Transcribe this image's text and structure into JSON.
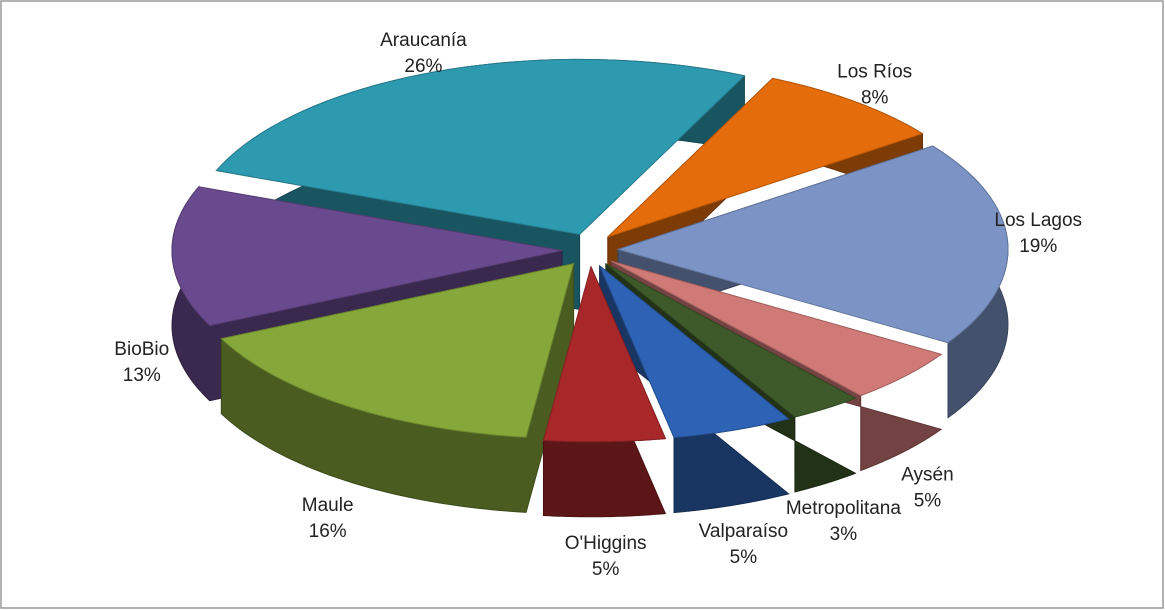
{
  "chart_data": {
    "type": "pie",
    "categories": [
      "Los Ríos",
      "Los Lagos",
      "Aysén",
      "Metropolitana",
      "Valparaíso",
      "O'Higgins",
      "Maule",
      "BioBio",
      "Araucanía"
    ],
    "values": [
      8,
      19,
      5,
      3,
      5,
      5,
      16,
      13,
      26
    ],
    "value_labels": [
      "8%",
      "19%",
      "5%",
      "3%",
      "5%",
      "5%",
      "16%",
      "13%",
      "26%"
    ],
    "colors": [
      "#e46c0a",
      "#7b93c5",
      "#d07a78",
      "#3e5a2a",
      "#2e62b4",
      "#a8282a",
      "#86a83a",
      "#6a4a8e",
      "#2e9ab0"
    ]
  }
}
